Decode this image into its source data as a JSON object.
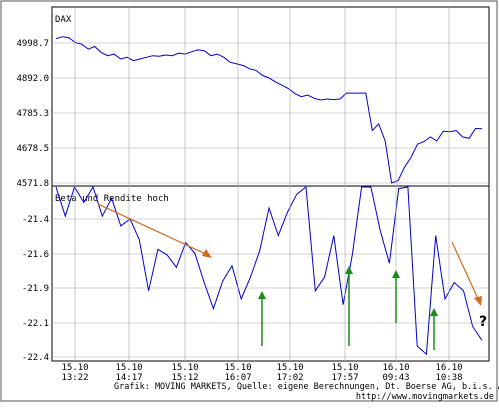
{
  "chart_data": [
    {
      "type": "line",
      "series": [
        {
          "name": "DAX",
          "color": "#0000cc",
          "values": [
            5012,
            5018,
            5015,
            5000,
            4995,
            4980,
            4988,
            4970,
            4960,
            4965,
            4950,
            4955,
            4945,
            4950,
            4955,
            4960,
            4958,
            4962,
            4960,
            4968,
            4965,
            4972,
            4978,
            4975,
            4960,
            4965,
            4955,
            4940,
            4935,
            4930,
            4920,
            4915,
            4900,
            4892,
            4880,
            4870,
            4860,
            4845,
            4835,
            4840,
            4830,
            4825,
            4828,
            4826,
            4828,
            4846,
            4846,
            4846,
            4846,
            4732,
            4752,
            4700,
            4571.8,
            4579,
            4620,
            4650,
            4690,
            4698,
            4712,
            4700,
            4730,
            4728,
            4732,
            4712,
            4708,
            4738,
            4737
          ]
        }
      ],
      "yticks": [
        "4998.7",
        "4892.0",
        "4785.3",
        "4678.5",
        "4571.8"
      ],
      "ylim": [
        4560,
        5030
      ]
    },
    {
      "type": "line",
      "series": [
        {
          "name": "Beta und Rendite hoch",
          "color": "#0000cc",
          "values": [
            -21.05,
            -21.38,
            -21.08,
            -21.28,
            -21.12,
            -21.38,
            -21.25,
            -21.45,
            -21.4,
            -21.55,
            -21.92,
            -21.62,
            -21.66,
            -21.75,
            -21.57,
            -21.65,
            -21.86,
            -22.05,
            -21.85,
            -21.74,
            -21.98,
            -21.82,
            -21.63,
            -21.32,
            -21.52,
            -21.35,
            -21.22,
            -21.08,
            -21.92,
            -21.82,
            -21.52,
            -22.02,
            -21.66,
            -20.95,
            -20.95,
            -21.48,
            -21.72,
            -21.18,
            -21.12,
            -22.32,
            -22.38,
            -21.52,
            -21.98,
            -21.86,
            -21.92,
            -22.18,
            -22.28
          ]
        }
      ],
      "yticks": [
        "-21.4",
        "-21.6",
        "-21.9",
        "-22.1",
        "-22.4"
      ],
      "ylim": [
        -22.4,
        -21.0
      ]
    }
  ],
  "x_ticks": [
    {
      "day": "15.10",
      "time": "13:22"
    },
    {
      "day": "15.10",
      "time": "14:17"
    },
    {
      "day": "15.10",
      "time": "15:12"
    },
    {
      "day": "15.10",
      "time": "16:07"
    },
    {
      "day": "15.10",
      "time": "17:02"
    },
    {
      "day": "15.10",
      "time": "17:57"
    },
    {
      "day": "16.10",
      "time": "09:43"
    },
    {
      "day": "16.10",
      "time": "10:38"
    }
  ],
  "footer": {
    "source": "Grafik: MOVING MARKETS, Quelle: eigene Berechnungen, Dt. Boerse AG, b.i.s. AG",
    "url": "http://www.movingmarkets.de"
  },
  "annotation": {
    "question_mark": "?"
  },
  "colors": {
    "line": "#0000cc",
    "up_arrow": "#1a8a1a",
    "down_arrow": "#d2691e",
    "grid": "#a8a8a8"
  }
}
